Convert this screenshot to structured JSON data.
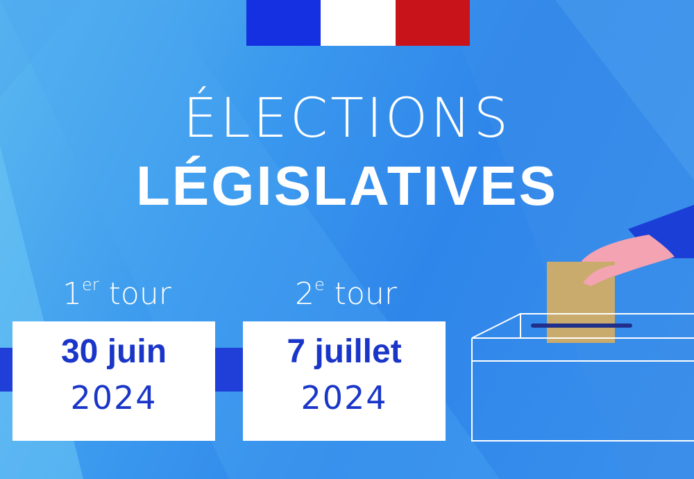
{
  "flag": {
    "colors": [
      "#1430e0",
      "#ffffff",
      "#c8131b"
    ]
  },
  "title": {
    "line1": "ÉLECTIONS",
    "line2": "LÉGISLATIVES"
  },
  "rounds": [
    {
      "number": "1",
      "suffix": "er",
      "word": "tour",
      "day": "30 juin",
      "year": "2024"
    },
    {
      "number": "2",
      "suffix": "e",
      "word": "tour",
      "day": "7 juillet",
      "year": "2024"
    }
  ],
  "illustration": {
    "icon": "ballot-box-icon",
    "sleeve_color": "#1b3fd6",
    "hand_color": "#f4a3b2",
    "envelope_color": "#c9ab6e"
  },
  "accent_color": "#1a36c9"
}
